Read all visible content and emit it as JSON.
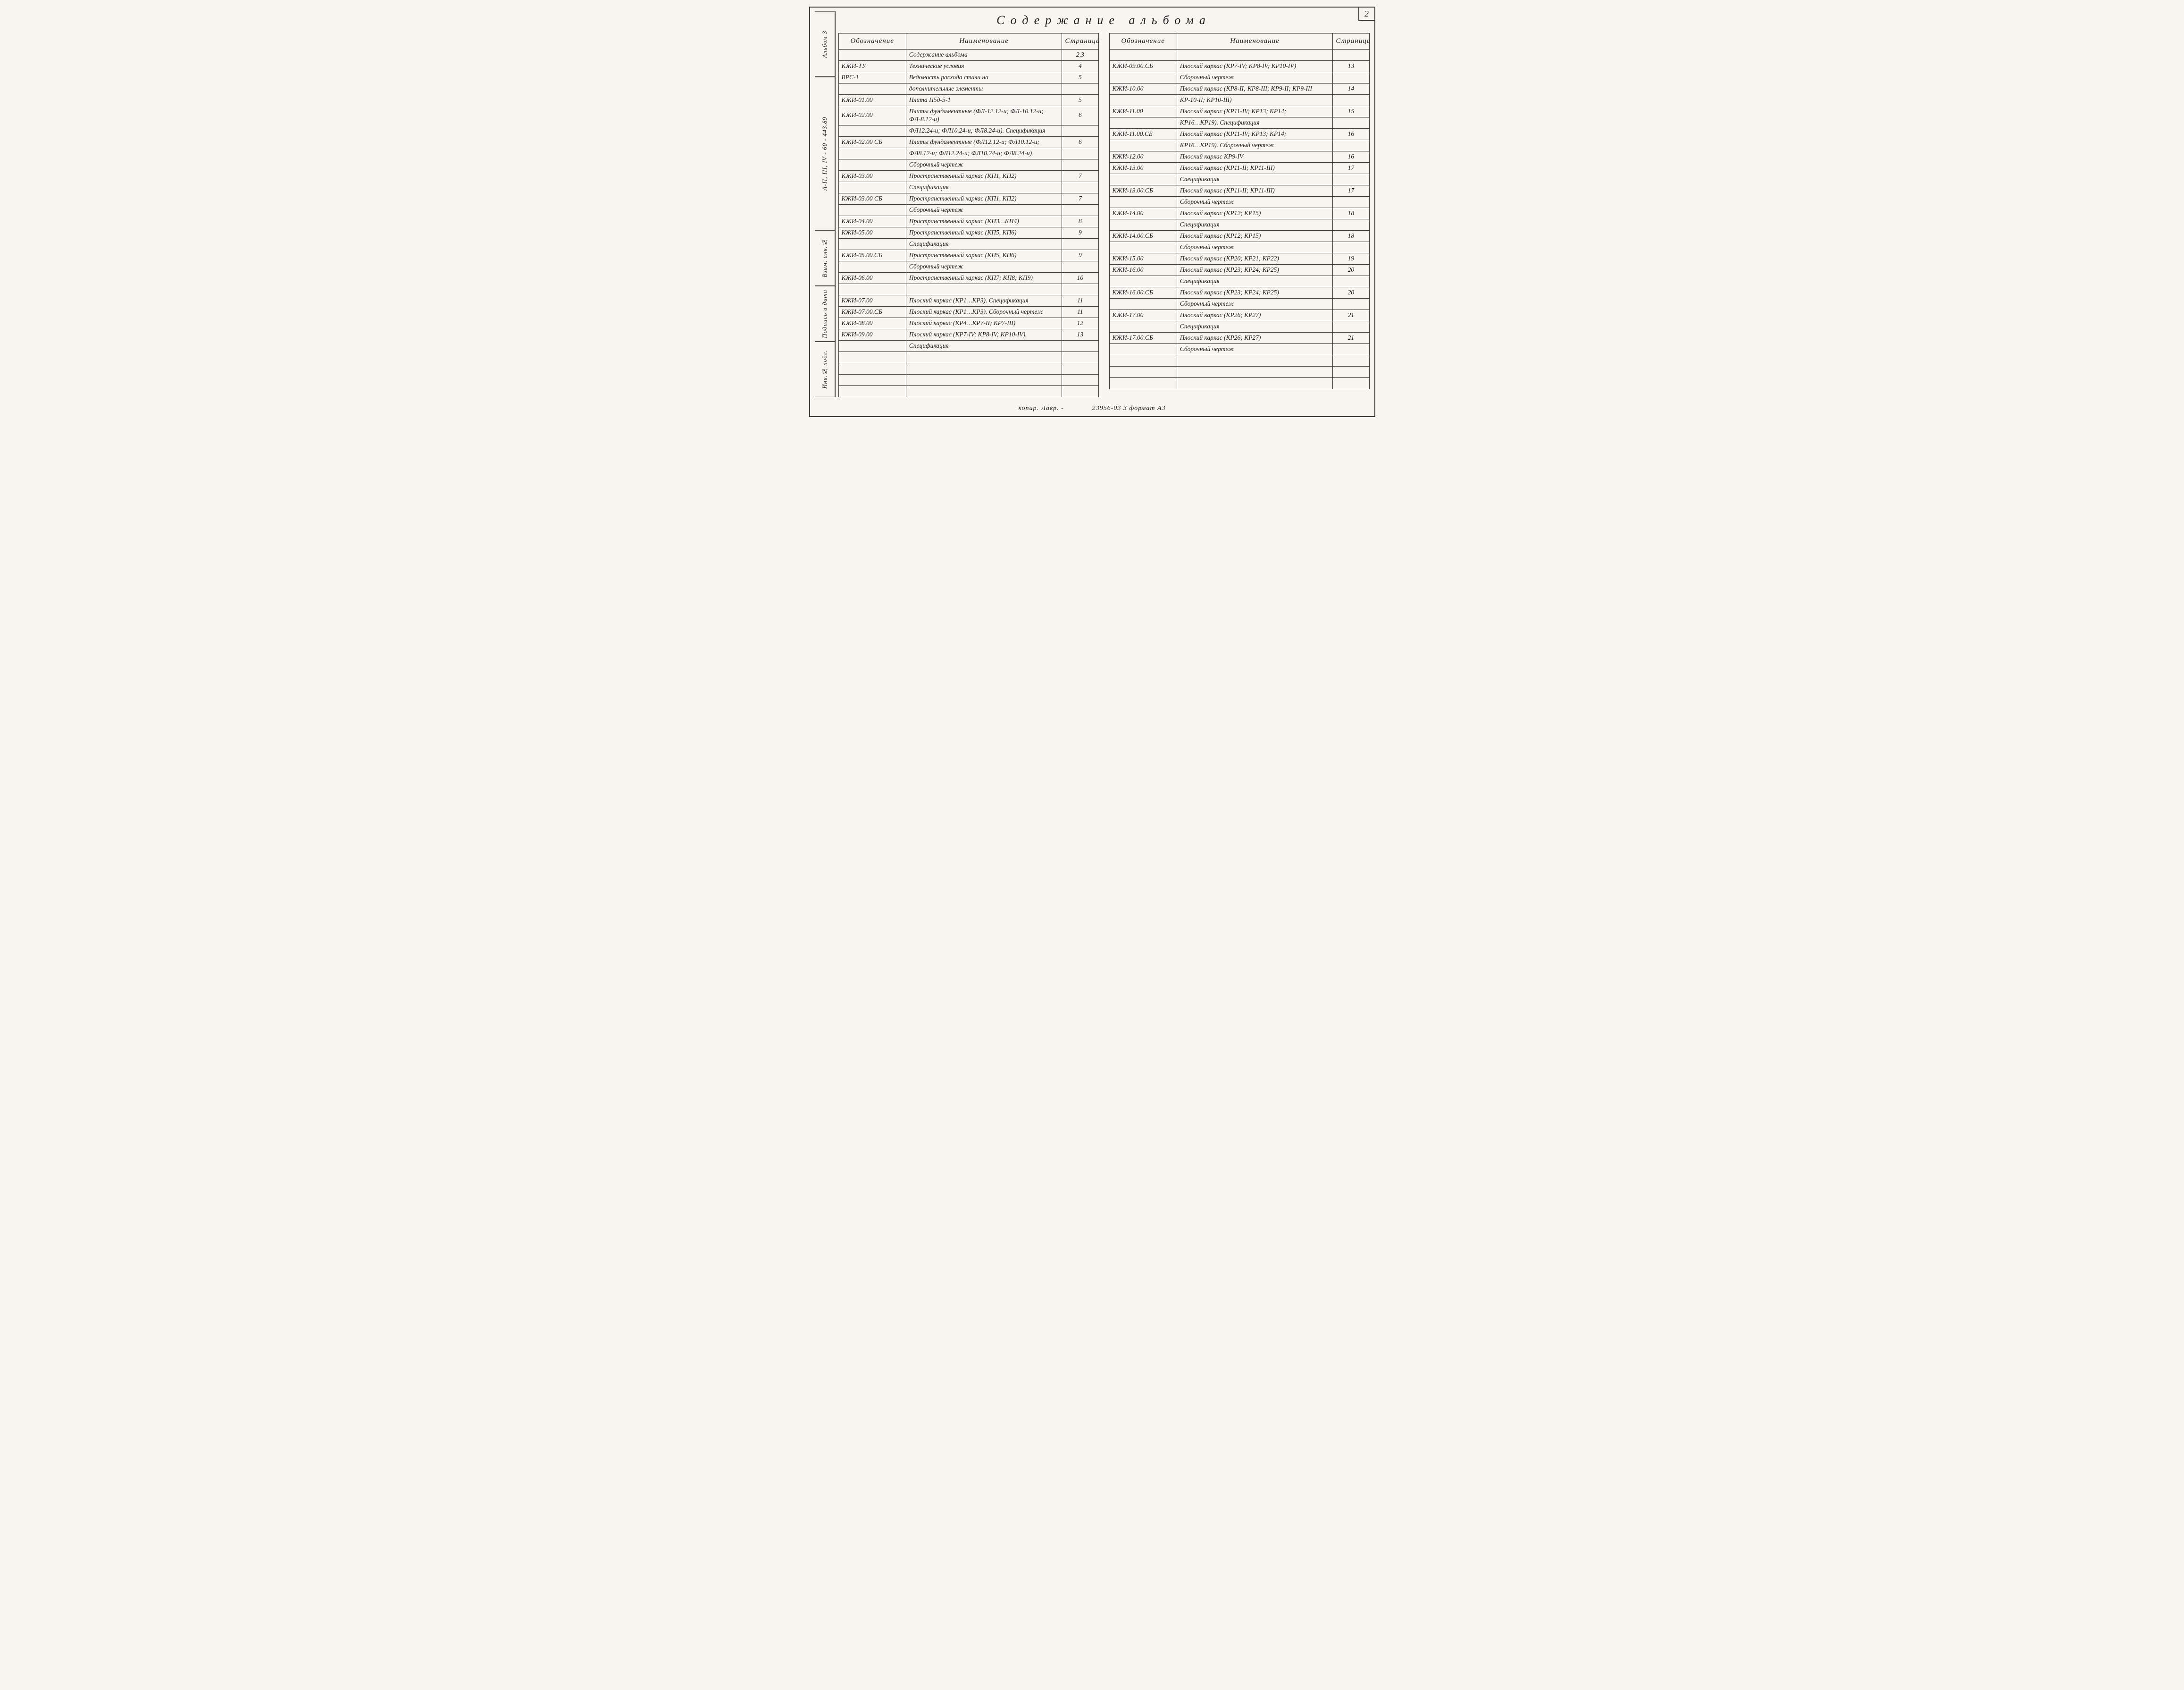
{
  "page_number": "2",
  "title": "Содержание альбома",
  "side_rail": {
    "album": "Альбом 3",
    "code": "А-II, III, IV - 60 - 443.89",
    "vzam": "Взам. инв.№",
    "podpis": "Подпись и дата",
    "inv": "Инв.№ подл."
  },
  "headers": {
    "designation": "Обозначение",
    "name": "Наименование",
    "page": "Страница"
  },
  "footer": {
    "kopir": "копир. Лавр. -",
    "doc": "23956-03  З  формат А3"
  },
  "left_rows": [
    {
      "des": "",
      "name": "Содержание альбома",
      "page": "2,3"
    },
    {
      "des": "КЖИ-ТУ",
      "name": "Технические условия",
      "page": "4"
    },
    {
      "des": "ВРС-1",
      "name": "Ведомость расхода стали на",
      "page": "5"
    },
    {
      "des": "",
      "name": "дополнительные элементы",
      "page": ""
    },
    {
      "des": "КЖИ-01.00",
      "name": "Плита П5д-5-1",
      "page": "5"
    },
    {
      "des": "КЖИ-02.00",
      "name": "Плиты фундаментные (ФЛ-12.12-и; ФЛ-10.12-и; ФЛ-8.12-и)",
      "page": "6"
    },
    {
      "des": "",
      "name": "ФЛ12.24-и; ФЛ10.24-и; ФЛ8.24-и). Спецификация",
      "page": ""
    },
    {
      "des": "КЖИ-02.00 СБ",
      "name": "Плиты фундаментные (ФЛ12.12-и; ФЛ10.12-и;",
      "page": "6"
    },
    {
      "des": "",
      "name": "ФЛ8.12-и; ФЛ12.24-и; ФЛ10.24-и; ФЛ8.24-и)",
      "page": ""
    },
    {
      "des": "",
      "name": "Сборочный чертеж",
      "page": ""
    },
    {
      "des": "КЖИ-03.00",
      "name": "Пространственный каркас (КП1, КП2)",
      "page": "7"
    },
    {
      "des": "",
      "name": "Спецификация",
      "page": ""
    },
    {
      "des": "КЖИ-03.00 СБ",
      "name": "Пространственный каркас (КП1, КП2)",
      "page": "7"
    },
    {
      "des": "",
      "name": "Сборочный чертеж",
      "page": ""
    },
    {
      "des": "КЖИ-04.00",
      "name": "Пространственный каркас (КП3…КП4)",
      "page": "8"
    },
    {
      "des": "КЖИ-05.00",
      "name": "Пространственный каркас (КП5, КП6)",
      "page": "9"
    },
    {
      "des": "",
      "name": "Спецификация",
      "page": ""
    },
    {
      "des": "КЖИ-05.00.СБ",
      "name": "Пространственный каркас (КП5, КП6)",
      "page": "9"
    },
    {
      "des": "",
      "name": "Сборочный чертеж",
      "page": ""
    },
    {
      "des": "КЖИ-06.00",
      "name": "Пространственный каркас (КП7; КП8; КП9)",
      "page": "10"
    },
    {
      "des": "",
      "name": "",
      "page": ""
    },
    {
      "des": "КЖИ-07.00",
      "name": "Плоский каркас (КР1…КР3). Спецификация",
      "page": "11"
    },
    {
      "des": "КЖИ-07.00.СБ",
      "name": "Плоский каркас (КР1…КР3). Сборочный чертеж",
      "page": "11"
    },
    {
      "des": "КЖИ-08.00",
      "name": "Плоский каркас (КР4…КР7-II; КР7-III)",
      "page": "12"
    },
    {
      "des": "КЖИ-09.00",
      "name": "Плоский каркас (КР7-IV; КР8-IV; КР10-IV).",
      "page": "13"
    },
    {
      "des": "",
      "name": "Спецификация",
      "page": ""
    },
    {
      "des": "",
      "name": "",
      "page": ""
    },
    {
      "des": "",
      "name": "",
      "page": ""
    },
    {
      "des": "",
      "name": "",
      "page": ""
    },
    {
      "des": "",
      "name": "",
      "page": ""
    }
  ],
  "right_rows": [
    {
      "des": "",
      "name": "",
      "page": ""
    },
    {
      "des": "КЖИ-09.00.СБ",
      "name": "Плоский каркас (КР7-IV; КР8-IV; КР10-IV)",
      "page": "13"
    },
    {
      "des": "",
      "name": "Сборочный чертеж",
      "page": ""
    },
    {
      "des": "КЖИ-10.00",
      "name": "Плоский каркас (КР8-II; КР8-III; КР9-II; КР9-III",
      "page": "14"
    },
    {
      "des": "",
      "name": "КР-10-II; КР10-III)",
      "page": ""
    },
    {
      "des": "КЖИ-11.00",
      "name": "Плоский каркас (КР11-IV; КР13; КР14;",
      "page": "15"
    },
    {
      "des": "",
      "name": "КР16…КР19). Спецификация",
      "page": ""
    },
    {
      "des": "КЖИ-11.00.СБ",
      "name": "Плоский каркас (КР11-IV; КР13; КР14;",
      "page": "16"
    },
    {
      "des": "",
      "name": "КР16…КР19). Сборочный чертеж",
      "page": ""
    },
    {
      "des": "КЖИ-12.00",
      "name": "Плоский каркас КР9-IV",
      "page": "16"
    },
    {
      "des": "КЖИ-13.00",
      "name": "Плоский каркас (КР11-II; КР11-III)",
      "page": "17"
    },
    {
      "des": "",
      "name": "Спецификация",
      "page": ""
    },
    {
      "des": "КЖИ-13.00.СБ",
      "name": "Плоский каркас (КР11-II; КР11-III)",
      "page": "17"
    },
    {
      "des": "",
      "name": "Сборочный чертеж",
      "page": ""
    },
    {
      "des": "КЖИ-14.00",
      "name": "Плоский каркас (КР12; КР15)",
      "page": "18"
    },
    {
      "des": "",
      "name": "Спецификация",
      "page": ""
    },
    {
      "des": "КЖИ-14.00.СБ",
      "name": "Плоский каркас (КР12; КР15)",
      "page": "18"
    },
    {
      "des": "",
      "name": "Сборочный чертеж",
      "page": ""
    },
    {
      "des": "КЖИ-15.00",
      "name": "Плоский каркас (КР20; КР21; КР22)",
      "page": "19"
    },
    {
      "des": "КЖИ-16.00",
      "name": "Плоский каркас (КР23; КР24; КР25)",
      "page": "20"
    },
    {
      "des": "",
      "name": "Спецификация",
      "page": ""
    },
    {
      "des": "КЖИ-16.00.СБ",
      "name": "Плоский каркас (КР23; КР24; КР25)",
      "page": "20"
    },
    {
      "des": "",
      "name": "Сборочный чертеж",
      "page": ""
    },
    {
      "des": "КЖИ-17.00",
      "name": "Плоский каркас (КР26; КР27)",
      "page": "21"
    },
    {
      "des": "",
      "name": "Спецификация",
      "page": ""
    },
    {
      "des": "КЖИ-17.00.СБ",
      "name": "Плоский каркас (КР26; КР27)",
      "page": "21"
    },
    {
      "des": "",
      "name": "Сборочный чертеж",
      "page": ""
    },
    {
      "des": "",
      "name": "",
      "page": ""
    },
    {
      "des": "",
      "name": "",
      "page": ""
    },
    {
      "des": "",
      "name": "",
      "page": ""
    }
  ]
}
